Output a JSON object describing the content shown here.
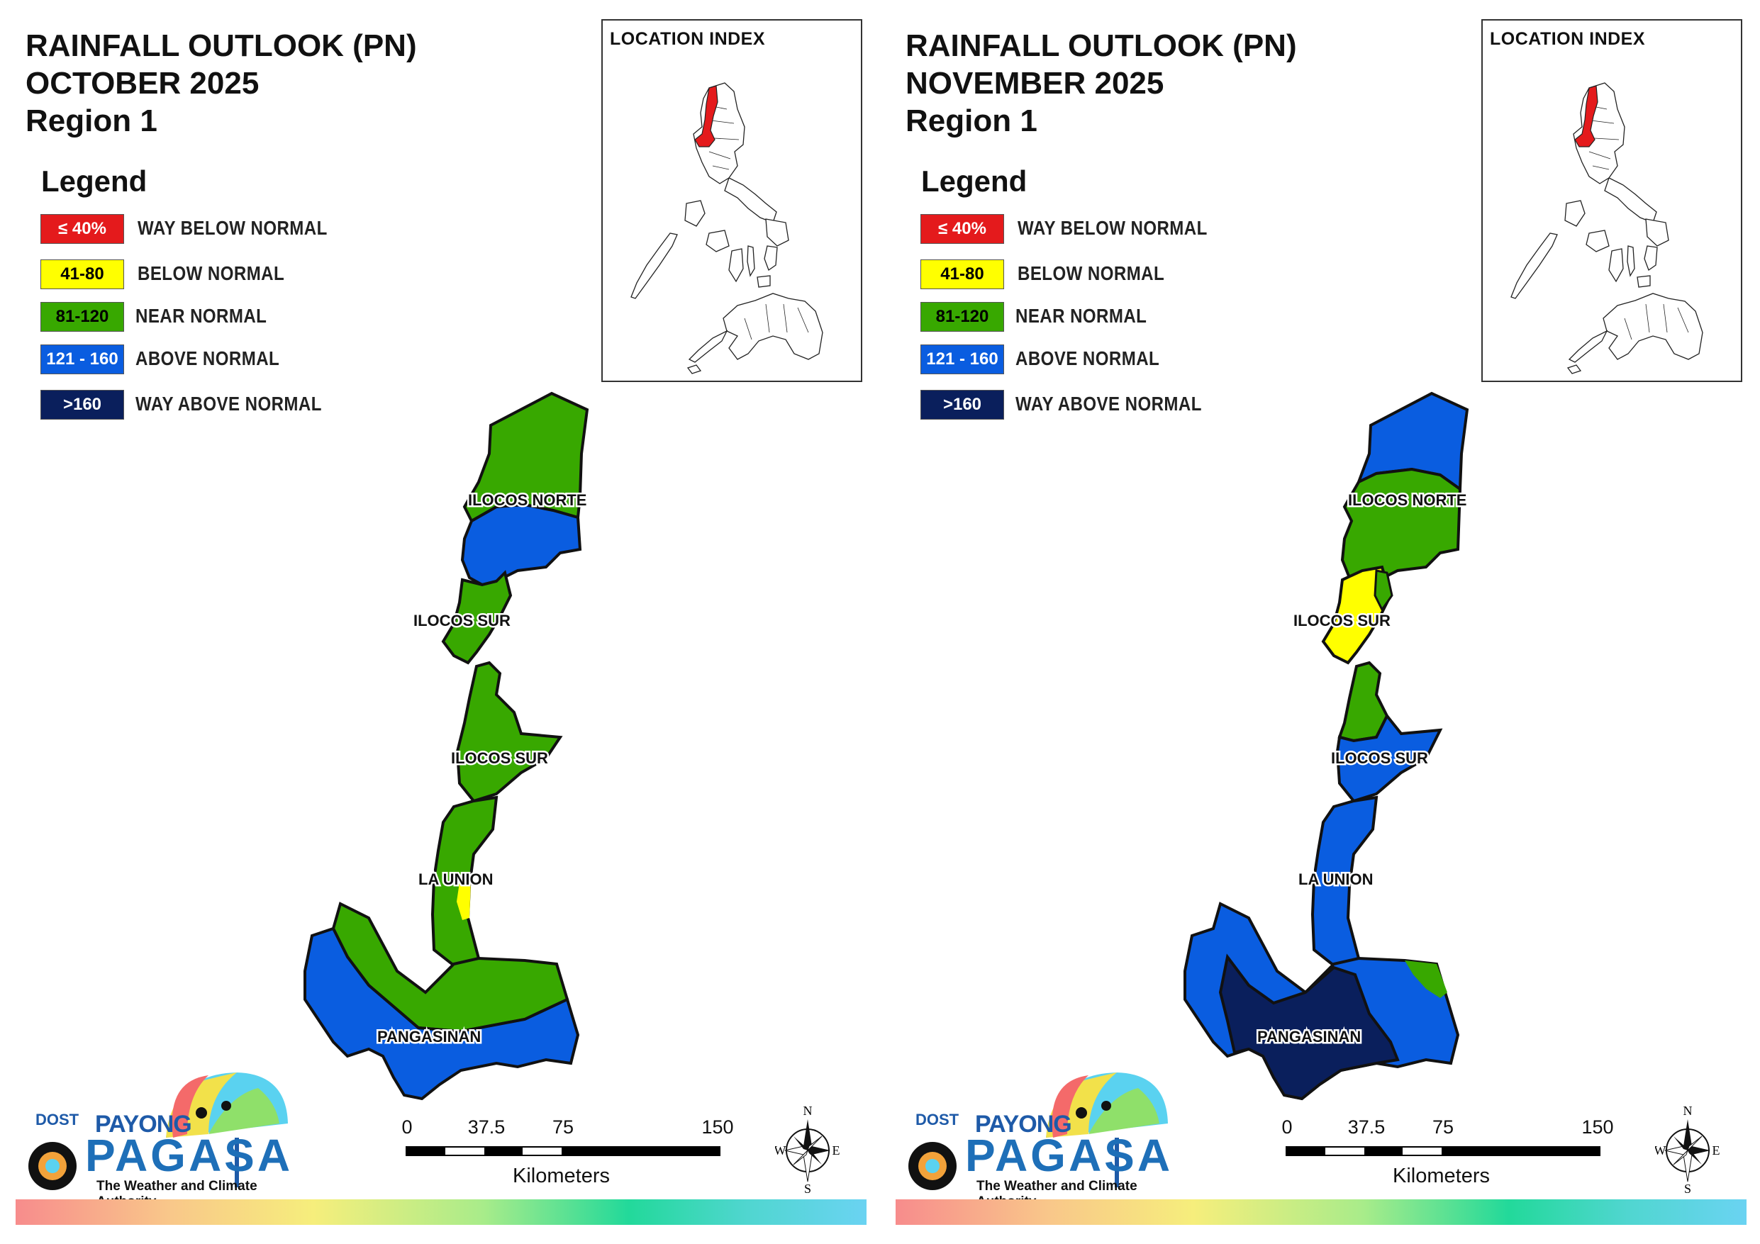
{
  "panels": [
    {
      "title_line1": "RAINFALL OUTLOOK (PN)",
      "title_line2": "OCTOBER 2025",
      "title_line3": "Region 1",
      "provinces": {
        "ilocos_norte": {
          "label": "ILOCOS NORTE",
          "category": [
            "above normal (south)",
            "near normal (north)"
          ]
        },
        "ilocos_sur_north": {
          "label": "ILOCOS SUR",
          "category": [
            "near normal"
          ]
        },
        "ilocos_sur_south": {
          "label": "ILOCOS SUR",
          "category": [
            "near normal"
          ]
        },
        "la_union": {
          "label": "LA UNION",
          "category": [
            "near normal",
            "below normal (small area)"
          ]
        },
        "pangasinan": {
          "label": "PANGASINAN",
          "category": [
            "above normal",
            "near normal (north-central)"
          ]
        }
      }
    },
    {
      "title_line1": "RAINFALL OUTLOOK (PN)",
      "title_line2": "NOVEMBER 2025",
      "title_line3": "Region 1",
      "provinces": {
        "ilocos_norte": {
          "label": "ILOCOS NORTE",
          "category": [
            "above normal (north)",
            "near normal (south)"
          ]
        },
        "ilocos_sur_north": {
          "label": "ILOCOS SUR",
          "category": [
            "below normal",
            "near normal"
          ]
        },
        "ilocos_sur_south": {
          "label": "ILOCOS SUR",
          "category": [
            "near normal (north)",
            "above normal (south)"
          ]
        },
        "la_union": {
          "label": "LA UNION",
          "category": [
            "above normal"
          ]
        },
        "pangasinan": {
          "label": "PANGASINAN",
          "category": [
            "way above normal (west-central)",
            "above normal",
            "near normal (east corner)"
          ]
        }
      }
    }
  ],
  "legend": {
    "title": "Legend",
    "items": [
      {
        "range": "≤ 40%",
        "label": "WAY BELOW NORMAL",
        "color": "#e41a1c",
        "text_color": "#ffffff"
      },
      {
        "range": "41-80",
        "label": "BELOW NORMAL",
        "color": "#ffff00",
        "text_color": "#000000"
      },
      {
        "range": "81-120",
        "label": "NEAR NORMAL",
        "color": "#38a800",
        "text_color": "#000000"
      },
      {
        "range": "121 - 160",
        "label": "ABOVE NORMAL",
        "color": "#0a5de0",
        "text_color": "#ffffff"
      },
      {
        "range": ">160",
        "label": "WAY ABOVE NORMAL",
        "color": "#0a1f5c",
        "text_color": "#ffffff"
      }
    ]
  },
  "inset": {
    "title": "LOCATION INDEX",
    "highlight_color": "#e41a1c"
  },
  "scale_bar": {
    "ticks": [
      "0",
      "37.5",
      "75",
      "150"
    ],
    "unit": "Kilometers"
  },
  "compass": {
    "n": "N",
    "e": "E",
    "s": "S",
    "w": "W"
  },
  "logo": {
    "dost": "DOST",
    "payong": "PAYONG",
    "pagasa": "PAGASA",
    "tagline": "The Weather and Climate Authority"
  },
  "colors": {
    "near_normal": "#38a800",
    "above_normal": "#0a5de0",
    "way_above_normal": "#0a1f5c",
    "below_normal": "#ffff00",
    "border": "#111111"
  }
}
